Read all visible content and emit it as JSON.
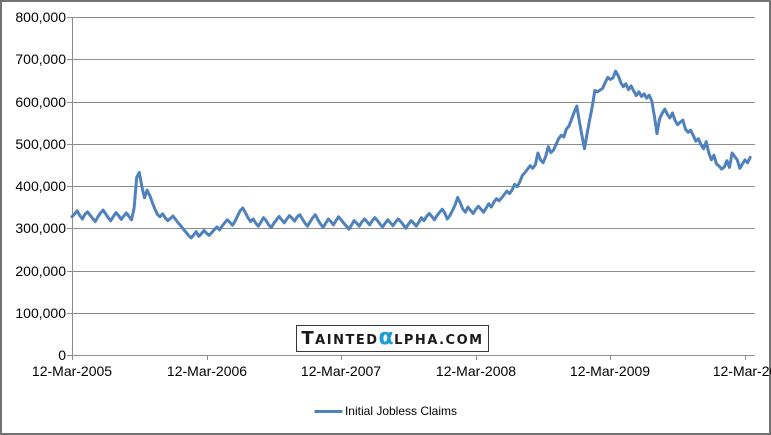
{
  "chart_data": {
    "type": "line",
    "title": "",
    "grid": "horizontal",
    "legend_position": "bottom",
    "x_axis": {
      "tick_labels": [
        "12-Mar-2005",
        "12-Mar-2006",
        "12-Mar-2007",
        "12-Mar-2008",
        "12-Mar-2009",
        "12-Mar-20"
      ],
      "tick_indices": [
        0,
        52,
        104,
        156,
        208,
        260
      ]
    },
    "y_axis": {
      "min": 0,
      "max": 800000,
      "tick_interval": 100000,
      "tick_labels": [
        "0",
        "100,000",
        "200,000",
        "300,000",
        "400,000",
        "500,000",
        "600,000",
        "700,000",
        "800,000"
      ]
    },
    "series": [
      {
        "name": "Initial Jobless Claims",
        "color": "#4F81BD",
        "values_scale": 1000,
        "values": [
          327,
          334,
          341,
          330,
          322,
          333,
          339,
          331,
          323,
          316,
          327,
          336,
          343,
          334,
          325,
          318,
          328,
          337,
          330,
          321,
          329,
          336,
          328,
          320,
          348,
          420,
          432,
          398,
          372,
          390,
          378,
          362,
          346,
          333,
          327,
          334,
          325,
          318,
          323,
          329,
          321,
          313,
          306,
          298,
          291,
          283,
          277,
          284,
          292,
          281,
          287,
          295,
          288,
          283,
          290,
          297,
          303,
          296,
          305,
          313,
          320,
          314,
          307,
          317,
          330,
          342,
          348,
          337,
          325,
          316,
          322,
          312,
          305,
          315,
          325,
          318,
          308,
          302,
          312,
          320,
          328,
          320,
          313,
          322,
          330,
          324,
          317,
          327,
          332,
          322,
          312,
          305,
          315,
          325,
          332,
          320,
          310,
          302,
          312,
          322,
          316,
          308,
          318,
          327,
          320,
          312,
          305,
          298,
          308,
          318,
          312,
          305,
          315,
          322,
          315,
          308,
          318,
          325,
          318,
          310,
          303,
          312,
          320,
          313,
          306,
          315,
          322,
          316,
          308,
          300,
          310,
          318,
          312,
          305,
          315,
          325,
          318,
          328,
          335,
          328,
          320,
          330,
          338,
          345,
          336,
          322,
          330,
          342,
          355,
          373,
          360,
          345,
          338,
          350,
          342,
          335,
          345,
          352,
          345,
          338,
          348,
          358,
          350,
          362,
          370,
          365,
          372,
          380,
          388,
          382,
          390,
          404,
          398,
          410,
          425,
          432,
          440,
          448,
          442,
          450,
          478,
          462,
          455,
          470,
          493,
          479,
          485,
          498,
          512,
          520,
          516,
          535,
          542,
          558,
          575,
          589,
          554,
          520,
          488,
          524,
          557,
          589,
          626,
          623,
          627,
          631,
          645,
          657,
          652,
          656,
          672,
          661,
          645,
          635,
          642,
          628,
          637,
          625,
          614,
          623,
          612,
          618,
          608,
          615,
          601,
          565,
          524,
          559,
          572,
          582,
          570,
          561,
          573,
          555,
          545,
          551,
          556,
          534,
          527,
          532,
          520,
          506,
          512,
          498,
          488,
          505,
          478,
          462,
          473,
          452,
          447,
          440,
          445,
          460,
          444,
          478,
          470,
          462,
          442,
          452,
          462,
          455,
          468
        ]
      }
    ]
  },
  "legend": {
    "label": "Initial Jobless Claims"
  },
  "watermark": {
    "part1": "T",
    "part2": "AINTED",
    "alpha": "α",
    "part3": "LPHA.COM"
  },
  "colors": {
    "line": "#4F81BD",
    "gridline": "#8C8C8C",
    "axis": "#8C8C8C",
    "text": "#000000",
    "frame": "#737373",
    "background": "#FFFFFF",
    "watermark_text": "#1A1A1A",
    "watermark_alpha": "#1E9CD8"
  }
}
